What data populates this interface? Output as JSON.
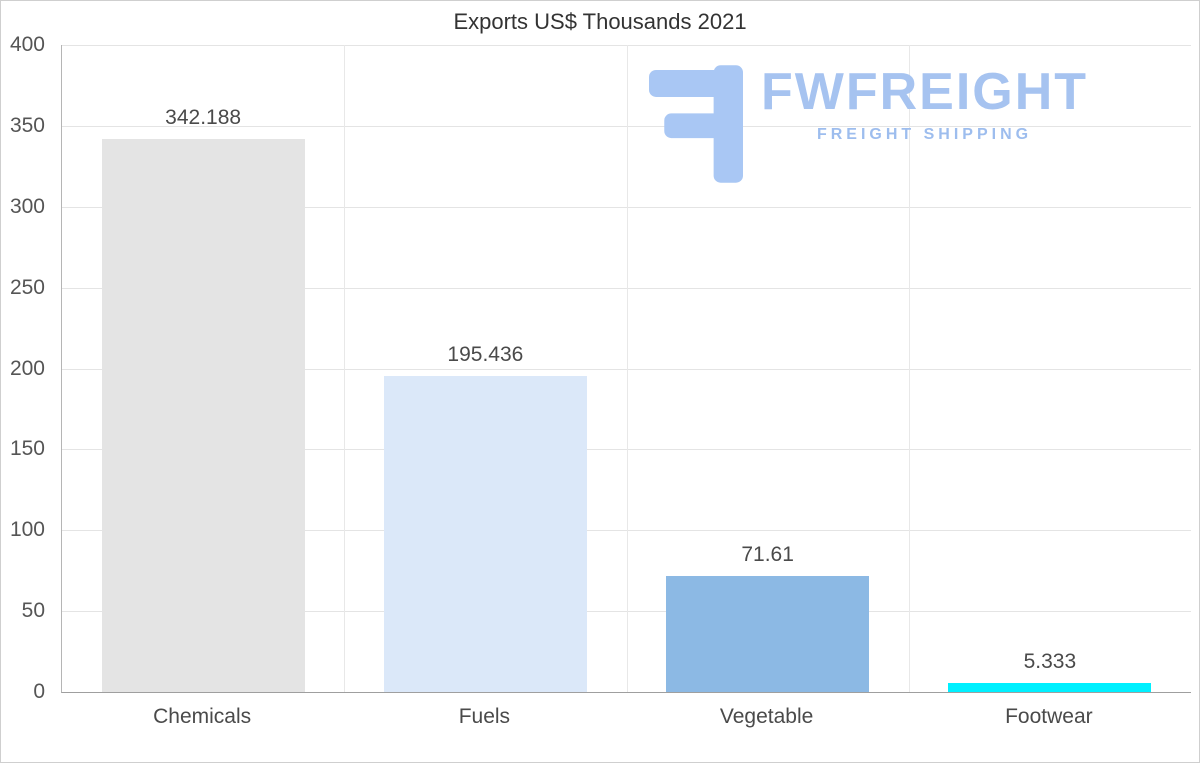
{
  "chart": {
    "watermark": {
      "brand": "FWFREIGHT",
      "tagline": "FREIGHT SHIPPING",
      "color": "#a6c3f0"
    }
  },
  "chart_data": {
    "type": "bar",
    "title": "Exports US$ Thousands 2021",
    "categories": [
      "Chemicals",
      "Fuels",
      "Vegetable",
      "Footwear"
    ],
    "values": [
      342.188,
      195.436,
      71.61,
      5.333
    ],
    "value_labels": [
      "342.188",
      "195.436",
      "71.61",
      "5.333"
    ],
    "bar_colors": [
      "#e4e4e4",
      "#dbe8f9",
      "#8cb9e4",
      "#00f0ff"
    ],
    "xlabel": "",
    "ylabel": "",
    "ylim": [
      0,
      400
    ],
    "yticks": [
      0,
      50,
      100,
      150,
      200,
      250,
      300,
      350,
      400
    ],
    "grid": true,
    "legend": false
  }
}
